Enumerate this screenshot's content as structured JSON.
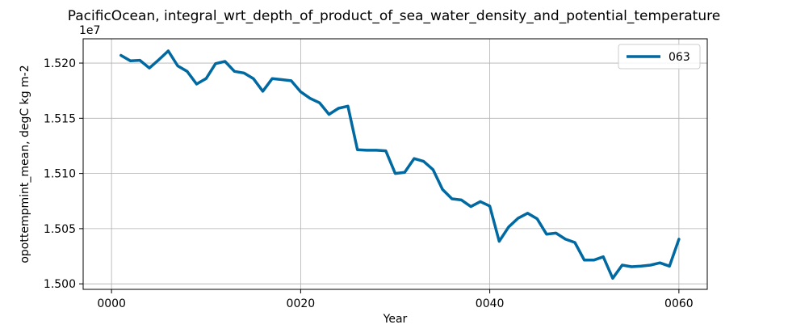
{
  "chart_data": {
    "type": "line",
    "title": "PacificOcean, integral_wrt_depth_of_product_of_sea_water_density_and_potential_temperature",
    "xlabel": "Year",
    "ylabel": "opottempmint_mean, degC kg m-2",
    "offset_label": "1e7",
    "xlim": [
      -3,
      63
    ],
    "ylim": [
      14995000,
      15222000
    ],
    "xticks": [
      0,
      20,
      40,
      60
    ],
    "xtick_labels": [
      "0000",
      "0020",
      "0040",
      "0060"
    ],
    "yticks": [
      15000000,
      15050000,
      15100000,
      15150000,
      15200000
    ],
    "ytick_labels": [
      "1.500",
      "1.505",
      "1.510",
      "1.515",
      "1.520"
    ],
    "grid": true,
    "legend_position": "top-right",
    "series": [
      {
        "name": "063",
        "color": "#0069a1",
        "x": [
          1,
          2,
          3,
          4,
          5,
          6,
          7,
          8,
          9,
          10,
          11,
          12,
          13,
          14,
          15,
          16,
          17,
          18,
          19,
          20,
          21,
          22,
          23,
          24,
          25,
          26,
          27,
          28,
          29,
          30,
          31,
          32,
          33,
          34,
          35,
          36,
          37,
          38,
          39,
          40,
          41,
          42,
          43,
          44,
          45,
          46,
          47,
          48,
          49,
          50,
          51,
          52,
          53,
          54,
          55,
          56,
          57,
          58,
          59,
          60
        ],
        "values": [
          15207000,
          15202000,
          15202500,
          15195500,
          15203000,
          15211000,
          15197500,
          15192500,
          15181000,
          15186000,
          15199500,
          15201500,
          15192500,
          15191000,
          15186000,
          15174500,
          15186000,
          15185000,
          15184000,
          15174000,
          15168000,
          15164000,
          15153500,
          15159000,
          15161000,
          15121500,
          15121000,
          15121000,
          15120500,
          15100000,
          15101000,
          15113500,
          15111000,
          15103500,
          15085500,
          15077000,
          15076000,
          15070000,
          15074500,
          15070500,
          15038500,
          15051500,
          15059500,
          15064000,
          15059000,
          15045000,
          15046000,
          15040500,
          15037500,
          15021500,
          15021500,
          15024500,
          15005000,
          15017000,
          15015500,
          15016000,
          15017000,
          15019000,
          15016000,
          15040500
        ]
      }
    ]
  }
}
